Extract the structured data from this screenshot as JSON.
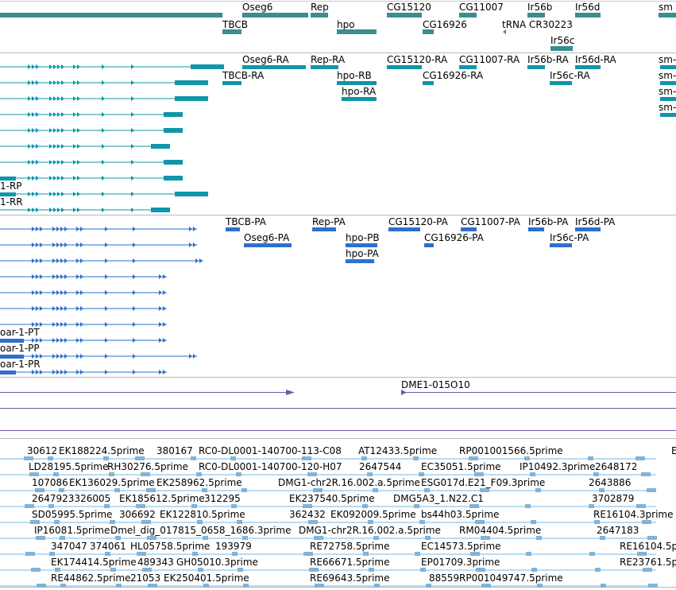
{
  "colors": {
    "gene": "#3a8e8f",
    "mrna": "#0f96aa",
    "protein": "#2f6fcf",
    "alignment": "#7557a8",
    "est": "#7fb4d8",
    "divider": "#b8b8b8"
  },
  "gene_track": {
    "labels": [
      "Oseg6",
      "Rep",
      "CG15120",
      "CG11007",
      "Ir56b",
      "Ir56d",
      "sm",
      "TBCB",
      "hpo",
      "CG16926",
      "tRNA",
      "CR30223",
      "Ir56c"
    ]
  },
  "mrna_track": {
    "labels": [
      "Oseg6-RA",
      "Rep-RA",
      "CG15120-RA",
      "CG11007-RA",
      "Ir56b-RA",
      "Ir56d-RA",
      "sm-",
      "TBCB-RA",
      "hpo-RB",
      "CG16926-RA",
      "Ir56c-RA",
      "sm-",
      "hpo-RA",
      "sm-",
      "sm-",
      "1-RP",
      "1-RR"
    ]
  },
  "protein_track": {
    "labels": [
      "TBCB-PA",
      "Rep-PA",
      "CG15120-PA",
      "CG11007-PA",
      "Ir56b-PA",
      "Ir56d-PA",
      "Oseg6-PA",
      "hpo-PB",
      "CG16926-PA",
      "Ir56c-PA",
      "hpo-PA",
      "oar-1-PT",
      "oar-1-PP",
      "oar-1-PR"
    ]
  },
  "alignment_track": {
    "labels": [
      "DME1-015O10"
    ]
  },
  "est_track": {
    "labels": [
      "30612",
      "EK188224.5prime",
      "380167",
      "RC0-DL0001-140700-113-C08",
      "AT12433.5prime",
      "RP001001566.5prime",
      "E",
      "LD28195.5prime",
      "RH30276.5prime",
      "RC0-DL0001-140700-120-H07",
      "2647544",
      "EC35051.5prime",
      "IP10492.3prime",
      "2648172",
      "107086",
      "EK136029.5prime",
      "EK258962.5prime",
      "DMG1-chr2R.16.002.a.5prime",
      "ESG017d.E21_F09.3prime",
      "2643886",
      "2647923326005",
      "EK185612.5prime",
      "312295",
      "EK237540.5prime",
      "DMG5A3_1.N22.C1",
      "3702879",
      "SD05995.5prime",
      "306692",
      "EK122810.5prime",
      "362432",
      "EK092009.5prime",
      "bs44h03.5prime",
      "RE16104.3prime",
      "IP16081.5prime",
      "Dmel_dig_017815_0658_1686.3prime",
      "DMG1-chr2R.16.002.a.5prime",
      "RM04404.5prime",
      "2647183",
      "347047",
      "374061",
      "HL05758.5prime",
      "193979",
      "RE72758.5prime",
      "EC14573.5prime",
      "RE16104.5p",
      "EK174414.5prime",
      "489343",
      "GH05010.3prime",
      "RE66671.5prime",
      "EP01709.3prime",
      "RE23761.5p",
      "RE44862.5prime",
      "21053",
      "EK250401.5prime",
      "RE69643.5prime",
      "88559",
      "RP001049747.5prime"
    ]
  }
}
